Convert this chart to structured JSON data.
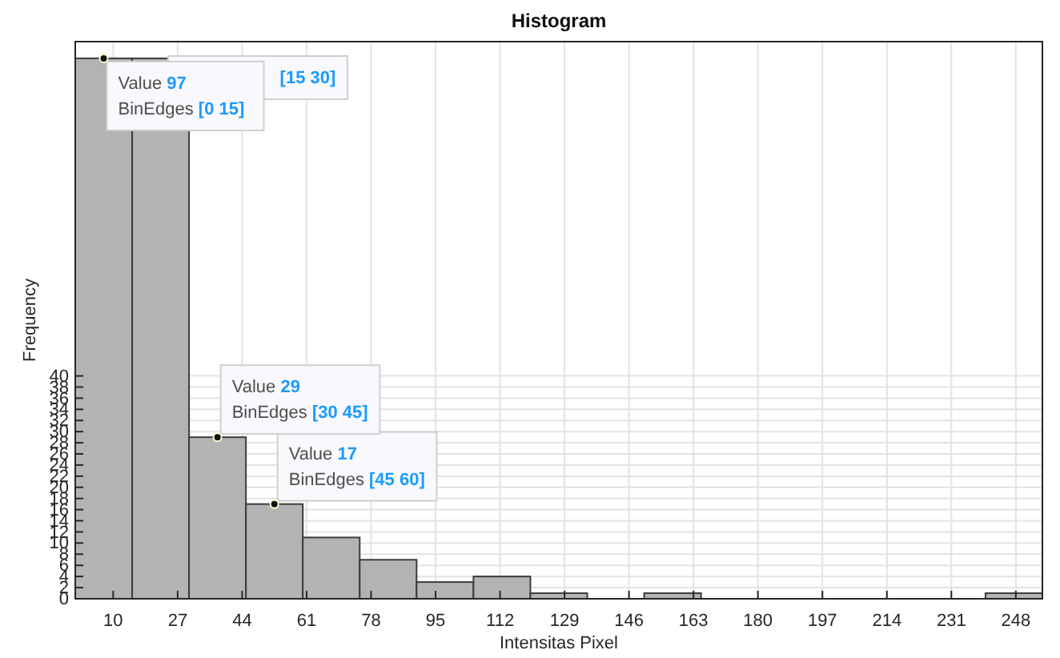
{
  "chart_data": {
    "type": "histogram",
    "title": "Histogram",
    "xlabel": "Intensitas Pixel",
    "ylabel": "Frequency",
    "bins": [
      0,
      15,
      30,
      45,
      60,
      75,
      90,
      105,
      120,
      135,
      150,
      165,
      180,
      195,
      210,
      225,
      240,
      255
    ],
    "values": [
      97,
      97,
      29,
      17,
      11,
      7,
      3,
      4,
      1,
      0,
      1,
      0,
      0,
      0,
      0,
      0,
      1
    ],
    "color": "#b3b3b3",
    "xlim": [
      0,
      255
    ],
    "xticks": [
      10,
      27,
      44,
      61,
      78,
      95,
      112,
      129,
      146,
      163,
      180,
      197,
      214,
      231,
      248
    ],
    "ylim": [
      0,
      100
    ],
    "yticks": [
      0,
      2,
      4,
      6,
      8,
      10,
      12,
      14,
      16,
      18,
      20,
      22,
      24,
      26,
      28,
      30,
      32,
      34,
      36,
      38,
      40
    ],
    "grid": true,
    "annotations": [
      {
        "text": "Value 97\nBinEdges [0 15]",
        "x": 7.5,
        "y": 97
      },
      "[15 30]",
      {
        "text": "Value 29\nBinEdges [30 45]",
        "x": 37.5,
        "y": 29
      },
      {
        "text": "Value 17\nBinEdges [45 60]",
        "x": 52.5,
        "y": 17
      }
    ]
  }
}
